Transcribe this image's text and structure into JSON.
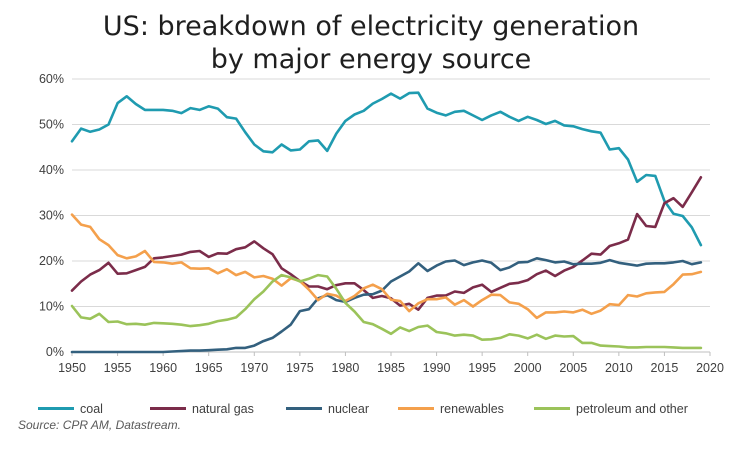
{
  "chart_data": {
    "type": "line",
    "title_lines": [
      "US: breakdown of electricity generation",
      "by major energy source"
    ],
    "xlim": [
      1950,
      2020
    ],
    "ylim": [
      0,
      60
    ],
    "xticks": [
      "1950",
      "1955",
      "1960",
      "1965",
      "1970",
      "1975",
      "1980",
      "1985",
      "1990",
      "1995",
      "2000",
      "2005",
      "2010",
      "2015",
      "2020"
    ],
    "yticks": [
      "0%",
      "10%",
      "20%",
      "30%",
      "40%",
      "50%",
      "60%"
    ],
    "grid": true,
    "legend_position": "bottom",
    "x": [
      1950,
      1951,
      1952,
      1953,
      1954,
      1955,
      1956,
      1957,
      1958,
      1959,
      1960,
      1961,
      1962,
      1963,
      1964,
      1965,
      1966,
      1967,
      1968,
      1969,
      1970,
      1971,
      1972,
      1973,
      1974,
      1975,
      1976,
      1977,
      1978,
      1979,
      1980,
      1981,
      1982,
      1983,
      1984,
      1985,
      1986,
      1987,
      1988,
      1989,
      1990,
      1991,
      1992,
      1993,
      1994,
      1995,
      1996,
      1997,
      1998,
      1999,
      2000,
      2001,
      2002,
      2003,
      2004,
      2005,
      2006,
      2007,
      2008,
      2009,
      2010,
      2011,
      2012,
      2013,
      2014,
      2015,
      2016,
      2017,
      2018,
      2019
    ],
    "series": [
      {
        "name": "coal",
        "color": "#1f9bb0",
        "values": [
          46.3,
          49.1,
          48.4,
          48.9,
          50.0,
          54.7,
          56.2,
          54.5,
          53.2,
          53.2,
          53.2,
          53.0,
          52.5,
          53.6,
          53.2,
          54.0,
          53.5,
          51.6,
          51.3,
          48.3,
          45.6,
          44.1,
          43.9,
          45.6,
          44.3,
          44.5,
          46.3,
          46.5,
          44.2,
          48.0,
          50.8,
          52.2,
          53.0,
          54.6,
          55.6,
          56.8,
          55.7,
          56.9,
          57.0,
          53.5,
          52.6,
          52.0,
          52.8,
          53.0,
          52.0,
          51.0,
          52.0,
          52.8,
          51.7,
          50.8,
          51.7,
          51.0,
          50.1,
          50.8,
          49.8,
          49.6,
          49.0,
          48.5,
          48.2,
          44.5,
          44.8,
          42.3,
          37.4,
          38.9,
          38.7,
          33.2,
          30.4,
          29.9,
          27.4,
          23.5
        ]
      },
      {
        "name": "natural gas",
        "color": "#7b2c4a",
        "values": [
          13.5,
          15.5,
          17.0,
          18.0,
          19.6,
          17.2,
          17.3,
          18.0,
          18.7,
          20.6,
          20.8,
          21.1,
          21.4,
          22.0,
          22.2,
          20.9,
          21.7,
          21.6,
          22.6,
          23.0,
          24.3,
          22.8,
          21.5,
          18.4,
          17.1,
          15.6,
          14.4,
          14.4,
          13.8,
          14.7,
          15.1,
          15.1,
          13.6,
          11.9,
          12.3,
          11.8,
          10.2,
          10.6,
          9.3,
          11.9,
          12.4,
          12.4,
          13.3,
          13.0,
          14.2,
          14.8,
          13.2,
          14.1,
          15.0,
          15.2,
          15.8,
          17.1,
          17.9,
          16.7,
          17.9,
          18.7,
          20.1,
          21.6,
          21.4,
          23.3,
          23.9,
          24.7,
          30.3,
          27.7,
          27.5,
          32.7,
          33.8,
          31.9,
          35.1,
          38.4
        ]
      },
      {
        "name": "nuclear",
        "color": "#33607e",
        "values": [
          0,
          0,
          0,
          0,
          0,
          0,
          0,
          0,
          0,
          0,
          0,
          0.1,
          0.2,
          0.3,
          0.3,
          0.4,
          0.5,
          0.6,
          0.9,
          0.9,
          1.4,
          2.4,
          3.1,
          4.5,
          6.0,
          9.0,
          9.4,
          11.8,
          12.5,
          11.4,
          11.0,
          11.9,
          12.6,
          12.7,
          13.5,
          15.5,
          16.6,
          17.7,
          19.5,
          17.8,
          19.0,
          19.9,
          20.1,
          19.1,
          19.7,
          20.1,
          19.6,
          18.0,
          18.6,
          19.7,
          19.8,
          20.6,
          20.2,
          19.7,
          19.9,
          19.3,
          19.4,
          19.4,
          19.6,
          20.2,
          19.6,
          19.3,
          19.0,
          19.4,
          19.5,
          19.5,
          19.7,
          20.0,
          19.3,
          19.7
        ]
      },
      {
        "name": "renewables",
        "color": "#f4a04c",
        "values": [
          30.2,
          28.0,
          27.5,
          24.8,
          23.5,
          21.3,
          20.6,
          21.0,
          22.2,
          19.8,
          19.7,
          19.4,
          19.7,
          18.4,
          18.3,
          18.4,
          17.3,
          18.2,
          16.9,
          17.6,
          16.4,
          16.7,
          16.1,
          14.6,
          16.2,
          15.6,
          13.7,
          11.4,
          12.8,
          12.4,
          11.2,
          12.3,
          14.0,
          14.8,
          13.8,
          11.5,
          11.2,
          9.0,
          10.7,
          11.6,
          11.6,
          12.0,
          10.4,
          11.4,
          10.0,
          11.4,
          12.6,
          12.5,
          10.9,
          10.6,
          9.4,
          7.5,
          8.7,
          8.7,
          8.9,
          8.7,
          9.3,
          8.4,
          9.1,
          10.5,
          10.3,
          12.5,
          12.2,
          12.9,
          13.1,
          13.2,
          14.9,
          17.0,
          17.1,
          17.6
        ]
      },
      {
        "name": "petroleum and other",
        "color": "#9bc35a",
        "values": [
          10.1,
          7.6,
          7.3,
          8.4,
          6.6,
          6.7,
          6.1,
          6.2,
          6.0,
          6.4,
          6.3,
          6.2,
          6.0,
          5.7,
          5.9,
          6.2,
          6.8,
          7.1,
          7.6,
          9.4,
          11.6,
          13.3,
          15.5,
          16.9,
          16.4,
          15.5,
          16.1,
          16.9,
          16.6,
          13.9,
          10.8,
          8.9,
          6.6,
          6.1,
          5.1,
          4.0,
          5.4,
          4.6,
          5.5,
          5.8,
          4.4,
          4.1,
          3.6,
          3.8,
          3.6,
          2.7,
          2.8,
          3.1,
          3.9,
          3.6,
          3.0,
          3.8,
          2.9,
          3.6,
          3.4,
          3.5,
          2.0,
          2.0,
          1.4,
          1.3,
          1.2,
          1.0,
          1.0,
          1.1,
          1.1,
          1.1,
          1.0,
          0.9,
          0.9,
          0.9
        ]
      }
    ],
    "source": "Source: CPR AM, Datastream."
  }
}
